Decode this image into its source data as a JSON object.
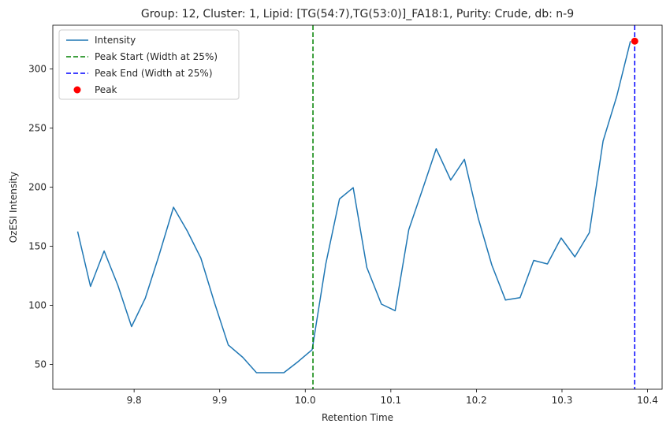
{
  "chart_data": {
    "type": "line",
    "title": "Group: 12, Cluster: 1, Lipid: [TG(54:7),TG(53:0)]_FA18:1, Purity: Crude, db: n-9",
    "xlabel": "Retention Time",
    "ylabel": "OzESI Intensity",
    "xlim": [
      9.705,
      10.417
    ],
    "ylim": [
      29,
      337
    ],
    "xticks": [
      9.8,
      9.9,
      10.0,
      10.1,
      10.2,
      10.3,
      10.4
    ],
    "xtick_labels": [
      "9.8",
      "9.9",
      "10.0",
      "10.1",
      "10.2",
      "10.3",
      "10.4"
    ],
    "yticks": [
      50,
      100,
      150,
      200,
      250,
      300
    ],
    "ytick_labels": [
      "50",
      "100",
      "150",
      "200",
      "250",
      "300"
    ],
    "grid": false,
    "legend_position": "top-left",
    "series": [
      {
        "name": "Intensity",
        "color": "#1f77b4",
        "x": [
          9.734,
          9.749,
          9.765,
          9.781,
          9.797,
          9.813,
          9.829,
          9.846,
          9.862,
          9.878,
          9.894,
          9.91,
          9.927,
          9.943,
          9.959,
          9.975,
          9.991,
          10.008,
          10.024,
          10.04,
          10.056,
          10.072,
          10.089,
          10.105,
          10.121,
          10.137,
          10.153,
          10.17,
          10.186,
          10.202,
          10.218,
          10.234,
          10.251,
          10.267,
          10.283,
          10.299,
          10.315,
          10.332,
          10.348,
          10.364,
          10.38
        ],
        "values": [
          162.5,
          116,
          146,
          117,
          82,
          106,
          142,
          183,
          163,
          140,
          102,
          66.5,
          56,
          43,
          43,
          43,
          52,
          62.5,
          135,
          190,
          199.5,
          132,
          101,
          95.5,
          164,
          198,
          232.5,
          206,
          223.5,
          174,
          134,
          104.5,
          106.5,
          138,
          135,
          157,
          141,
          161.5,
          239,
          277,
          323.5
        ]
      }
    ],
    "vlines": [
      {
        "name": "Peak Start (Width at 25%)",
        "x": 10.009,
        "color": "#008000",
        "style": "dashed"
      },
      {
        "name": "Peak End (Width at 25%)",
        "x": 10.385,
        "color": "#0000ff",
        "style": "dashed"
      }
    ],
    "markers": [
      {
        "name": "Peak",
        "x": 10.385,
        "y": 323.5,
        "color": "#ff0000"
      }
    ]
  }
}
